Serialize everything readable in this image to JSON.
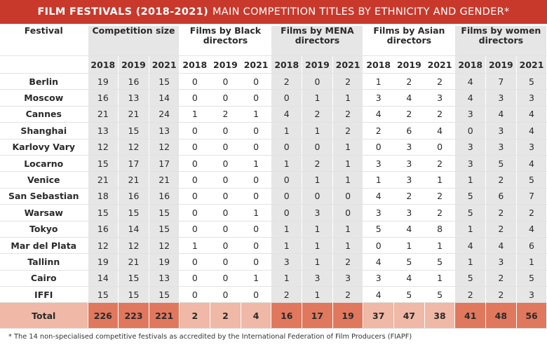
{
  "title": {
    "bold": "FILM FESTIVALS (2018-2021)",
    "rest": "MAIN COMPETITION TITLES BY ETHNICITY AND GENDER*"
  },
  "columns": {
    "festival": "Festival",
    "groups": [
      "Competition size",
      "Films by Black directors",
      "Films by MENA directors",
      "Films by Asian directors",
      "Films by women directors"
    ],
    "years": [
      "2018",
      "2019",
      "2021"
    ]
  },
  "rows": [
    {
      "name": "Berlin",
      "values": [
        "19",
        "16",
        "15",
        "0",
        "0",
        "0",
        "2",
        "0",
        "2",
        "1",
        "2",
        "2",
        "4",
        "7",
        "5"
      ]
    },
    {
      "name": "Moscow",
      "values": [
        "16",
        "13",
        "14",
        "0",
        "0",
        "0",
        "0",
        "1",
        "1",
        "3",
        "4",
        "3",
        "4",
        "3",
        "3"
      ]
    },
    {
      "name": "Cannes",
      "values": [
        "21",
        "21",
        "24",
        "1",
        "2",
        "1",
        "4",
        "2",
        "2",
        "4",
        "2",
        "2",
        "3",
        "4",
        "4"
      ]
    },
    {
      "name": "Shanghai",
      "values": [
        "13",
        "15",
        "13",
        "0",
        "0",
        "0",
        "1",
        "1",
        "2",
        "2",
        "6",
        "4",
        "0",
        "3",
        "4"
      ]
    },
    {
      "name": "Karlovy Vary",
      "values": [
        "12",
        "12",
        "12",
        "0",
        "0",
        "0",
        "0",
        "0",
        "1",
        "0",
        "3",
        "0",
        "3",
        "3",
        "3"
      ]
    },
    {
      "name": "Locarno",
      "values": [
        "15",
        "17",
        "17",
        "0",
        "0",
        "1",
        "1",
        "2",
        "1",
        "3",
        "3",
        "2",
        "3",
        "5",
        "4"
      ]
    },
    {
      "name": "Venice",
      "values": [
        "21",
        "21",
        "21",
        "0",
        "0",
        "0",
        "0",
        "1",
        "1",
        "1",
        "3",
        "1",
        "1",
        "2",
        "5"
      ]
    },
    {
      "name": "San Sebastian",
      "values": [
        "18",
        "16",
        "16",
        "0",
        "0",
        "0",
        "0",
        "0",
        "0",
        "4",
        "2",
        "2",
        "5",
        "6",
        "7"
      ]
    },
    {
      "name": "Warsaw",
      "values": [
        "15",
        "15",
        "15",
        "0",
        "0",
        "1",
        "0",
        "3",
        "0",
        "3",
        "3",
        "2",
        "5",
        "2",
        "2"
      ]
    },
    {
      "name": "Tokyo",
      "values": [
        "16",
        "14",
        "15",
        "0",
        "0",
        "0",
        "1",
        "1",
        "1",
        "5",
        "4",
        "8",
        "1",
        "2",
        "4"
      ]
    },
    {
      "name": "Mar del Plata",
      "values": [
        "12",
        "12",
        "12",
        "1",
        "0",
        "0",
        "1",
        "1",
        "1",
        "0",
        "1",
        "1",
        "4",
        "4",
        "6"
      ]
    },
    {
      "name": "Tallinn",
      "values": [
        "19",
        "21",
        "19",
        "0",
        "0",
        "0",
        "3",
        "1",
        "2",
        "4",
        "5",
        "5",
        "1",
        "3",
        "1"
      ]
    },
    {
      "name": "Cairo",
      "values": [
        "14",
        "15",
        "13",
        "0",
        "0",
        "1",
        "1",
        "3",
        "3",
        "3",
        "4",
        "1",
        "5",
        "2",
        "5"
      ]
    },
    {
      "name": "IFFI",
      "values": [
        "15",
        "15",
        "15",
        "0",
        "0",
        "0",
        "2",
        "1",
        "2",
        "4",
        "5",
        "5",
        "2",
        "2",
        "3"
      ]
    }
  ],
  "total": {
    "name": "Total",
    "values": [
      "226",
      "223",
      "221",
      "2",
      "2",
      "4",
      "16",
      "17",
      "19",
      "37",
      "47",
      "38",
      "41",
      "48",
      "56"
    ]
  },
  "total_colors": [
    "#e0785e",
    "#f0b8a6",
    "#e0785e",
    "#f0b8a6",
    "#e0785e"
  ],
  "footnote": "* The 14 non-specialised competitive festivals as accredited by the International Federation of Film Producers (FIAPF)"
}
